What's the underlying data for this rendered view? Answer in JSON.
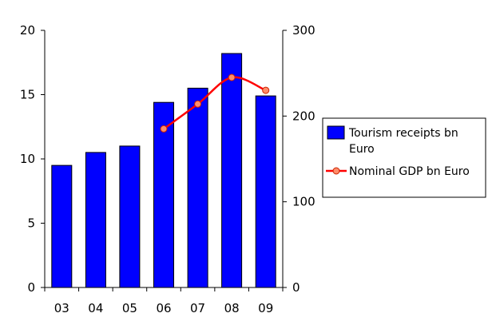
{
  "chart_data": {
    "type": "bar",
    "categories": [
      "03",
      "04",
      "05",
      "06",
      "07",
      "08",
      "09"
    ],
    "series": [
      {
        "name": "Tourism receipts bn Euro",
        "type": "bar",
        "axis": "left",
        "color": "#0000ff",
        "values": [
          9.5,
          10.5,
          11.0,
          14.4,
          15.5,
          18.2,
          14.9
        ]
      },
      {
        "name": "Nominal GDP bn Euro",
        "type": "line",
        "axis": "right",
        "color": "#ff0000",
        "marker_color": "#ff8c69",
        "values": [
          null,
          null,
          null,
          185,
          214,
          245,
          230
        ]
      }
    ],
    "y_left": {
      "ylim": [
        0,
        20
      ],
      "ticks": [
        "0",
        "5",
        "10",
        "15",
        "20"
      ]
    },
    "y_right": {
      "ylim": [
        0,
        300
      ],
      "ticks": [
        "0",
        "100",
        "200",
        "300"
      ]
    },
    "legend": {
      "position": "right",
      "entries": [
        {
          "line1": "Tourism receipts bn",
          "line2": "Euro"
        },
        {
          "line1": "Nominal GDP bn Euro"
        }
      ]
    },
    "grid": false
  }
}
